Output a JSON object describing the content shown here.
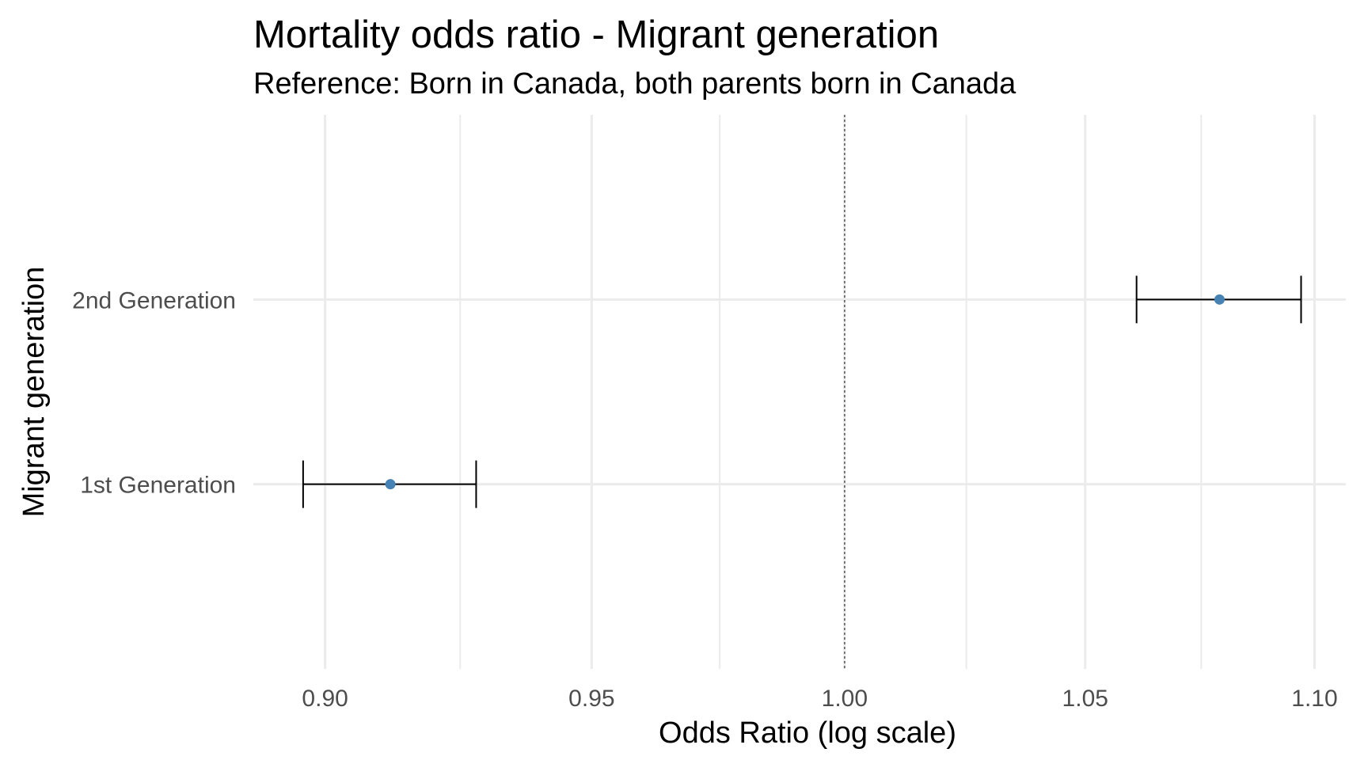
{
  "chart_data": {
    "type": "scatter",
    "title": "Mortality odds ratio - Migrant generation",
    "subtitle": "Reference: Born in Canada, both parents born in Canada",
    "xlabel": "Odds Ratio (log scale)",
    "ylabel": "Migrant generation",
    "x_scale": "log",
    "xlim": [
      0.887,
      1.107
    ],
    "x_ticks": [
      {
        "value": 0.9,
        "label": "0.90"
      },
      {
        "value": 0.95,
        "label": "0.95"
      },
      {
        "value": 1.0,
        "label": "1.00"
      },
      {
        "value": 1.05,
        "label": "1.05"
      },
      {
        "value": 1.1,
        "label": "1.10"
      }
    ],
    "x_minor_ticks": [
      0.925,
      0.975,
      1.025,
      1.075
    ],
    "reference_line": {
      "x": 1.0,
      "style": "dotted"
    },
    "categories": [
      "1st Generation",
      "2nd Generation"
    ],
    "points": [
      {
        "category": "1st Generation",
        "estimate": 0.912,
        "ci_low": 0.896,
        "ci_high": 0.928
      },
      {
        "category": "2nd Generation",
        "estimate": 1.079,
        "ci_low": 1.061,
        "ci_high": 1.097
      }
    ],
    "grid": true,
    "legend": "none",
    "colors": {
      "point": "#4682b4",
      "errorbar": "#000000",
      "grid": "#ebebeb",
      "reference": "#555555"
    }
  }
}
